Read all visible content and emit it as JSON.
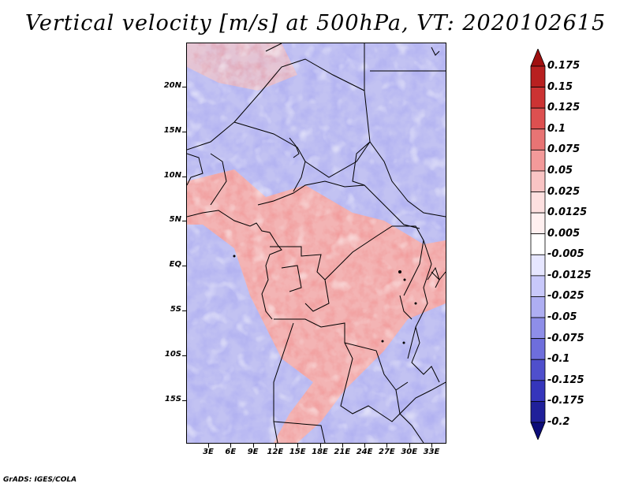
{
  "title": "Vertical velocity [m/s] at 500hPa, VT: 2020102615",
  "credit": "GrADS: IGES/COLA",
  "map": {
    "lat_labels": [
      "20N",
      "15N",
      "10N",
      "5N",
      "EQ",
      "5S",
      "10S",
      "15S"
    ],
    "lon_labels": [
      "3E",
      "6E",
      "9E",
      "12E",
      "15E",
      "18E",
      "21E",
      "24E",
      "27E",
      "30E",
      "33E"
    ]
  },
  "colorbar": {
    "labels": [
      "0.175",
      "0.15",
      "0.125",
      "0.1",
      "0.075",
      "0.05",
      "0.025",
      "0.0125",
      "0.005",
      "-0.005",
      "-0.0125",
      "-0.025",
      "-0.05",
      "-0.075",
      "-0.1",
      "-0.125",
      "-0.175",
      "-0.2"
    ],
    "colors": [
      "#a01010",
      "#b82020",
      "#cc3333",
      "#dd5050",
      "#e87474",
      "#f39a9a",
      "#f9c4c4",
      "#fde0e0",
      "#fff0f0",
      "#ffffff",
      "#e6e6ff",
      "#c8c8fa",
      "#aeaef2",
      "#8e8ee8",
      "#6e6edc",
      "#4f4fcc",
      "#3535bb",
      "#20209a",
      "#0c0c78"
    ]
  },
  "colors": {
    "positive": "#e06060",
    "negative": "#6b6be0",
    "boundary": "#000000"
  }
}
